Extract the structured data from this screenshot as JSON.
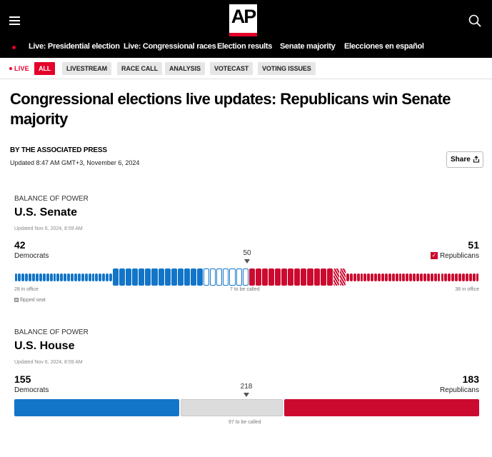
{
  "header": {
    "logo_text": "AP",
    "nav": [
      "Live: Presidential election",
      "Live: Congressional races",
      "Election results",
      "Senate majority",
      "Elecciones en español"
    ]
  },
  "filters": {
    "live_label": "LIVE",
    "chips": [
      "ALL",
      "LIVESTREAM",
      "RACE CALL",
      "ANALYSIS",
      "VOTECAST",
      "VOTING ISSUES"
    ],
    "active": "ALL"
  },
  "article": {
    "title": "Congressional elections live updates: Republicans win Senate majority",
    "byline": "BY  THE ASSOCIATED PRESS",
    "updated": "Updated 8:47 AM GMT+3, November 6, 2024",
    "share_label": "Share"
  },
  "senate": {
    "kicker": "BALANCE OF POWER",
    "title": "U.S. Senate",
    "updated": "Updated Nov 6, 2024, 8:59 AM",
    "dem_count": "42",
    "dem_label": "Democrats",
    "rep_count": "51",
    "rep_label": "Republicans",
    "majority": "50",
    "dem_in_office": "28 in office",
    "to_be_called": "7 to be called",
    "rep_in_office": "38 in office",
    "flipped_label": "flipped seat",
    "seats": {
      "dem_in_office": 28,
      "dem_won": 14,
      "uncalled": 7,
      "rep_won": 13,
      "rep_flipped": 2,
      "rep_in_office": 38
    }
  },
  "house": {
    "kicker": "BALANCE OF POWER",
    "title": "U.S. House",
    "updated": "Updated Nov 6, 2024, 8:59 AM",
    "dem_count": "155",
    "dem_label": "Democrats",
    "rep_count": "183",
    "rep_label": "Republicans",
    "majority": "218",
    "to_be_called": "97 to be called",
    "seats": {
      "dem": 155,
      "uncalled": 97,
      "rep": 183
    }
  },
  "colors": {
    "ap_red": "#e4002b",
    "dem_blue": "#1375c8",
    "rep_red": "#cc0a2f",
    "uncalled_gray": "#dcdcdc"
  }
}
